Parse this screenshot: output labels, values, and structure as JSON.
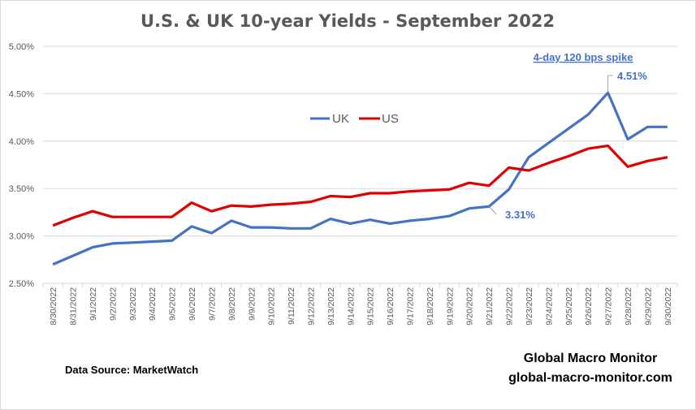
{
  "chart_data": {
    "type": "line",
    "title": "U.S. & UK 10-year Yields - September 2022",
    "xlabel": "",
    "ylabel": "",
    "ylim": [
      2.5,
      5.0
    ],
    "yticks": [
      2.5,
      3.0,
      3.5,
      4.0,
      4.5,
      5.0
    ],
    "ytick_labels": [
      "2.50%",
      "3.00%",
      "3.50%",
      "4.00%",
      "4.50%",
      "5.00%"
    ],
    "grid": true,
    "legend_position": "upper-center",
    "categories": [
      "8/30/2022",
      "8/31/2022",
      "9/1/2022",
      "9/2/2022",
      "9/3/2022",
      "9/4/2022",
      "9/5/2022",
      "9/6/2022",
      "9/7/2022",
      "9/8/2022",
      "9/9/2022",
      "9/10/2022",
      "9/11/2022",
      "9/12/2022",
      "9/13/2022",
      "9/14/2022",
      "9/15/2022",
      "9/16/2022",
      "9/17/2022",
      "9/18/2022",
      "9/19/2022",
      "9/20/2022",
      "9/21/2022",
      "9/22/2022",
      "9/23/2022",
      "9/24/2022",
      "9/25/2022",
      "9/26/2022",
      "9/27/2022",
      "9/28/2022",
      "9/29/2022",
      "9/30/2022"
    ],
    "series": [
      {
        "name": "UK",
        "color": "#4472c4",
        "values": [
          2.7,
          2.79,
          2.88,
          2.92,
          2.93,
          2.94,
          2.95,
          3.1,
          3.03,
          3.16,
          3.09,
          3.09,
          3.08,
          3.08,
          3.18,
          3.13,
          3.17,
          3.13,
          3.16,
          3.18,
          3.21,
          3.29,
          3.31,
          3.49,
          3.83,
          3.98,
          4.13,
          4.28,
          4.51,
          4.02,
          4.15,
          4.15
        ]
      },
      {
        "name": "US",
        "color": "#e00000",
        "values": [
          3.11,
          3.19,
          3.26,
          3.2,
          3.2,
          3.2,
          3.2,
          3.35,
          3.26,
          3.32,
          3.31,
          3.33,
          3.34,
          3.36,
          3.42,
          3.41,
          3.45,
          3.45,
          3.47,
          3.48,
          3.49,
          3.56,
          3.53,
          3.72,
          3.69,
          3.77,
          3.84,
          3.92,
          3.95,
          3.73,
          3.79,
          3.83
        ]
      }
    ],
    "annotations": [
      {
        "text": "4-day 120 bps spike",
        "style": "underlined",
        "target": "9/27/2022"
      },
      {
        "text": "4.51%",
        "series": "UK",
        "x": "9/27/2022",
        "value": 4.51
      },
      {
        "text": "3.31%",
        "series": "UK",
        "x": "9/21/2022",
        "value": 3.31
      }
    ]
  },
  "footer": {
    "source": "Data Source:   MarketWatch",
    "brand": "Global Macro Monitor",
    "website": "global-macro-monitor.com"
  }
}
